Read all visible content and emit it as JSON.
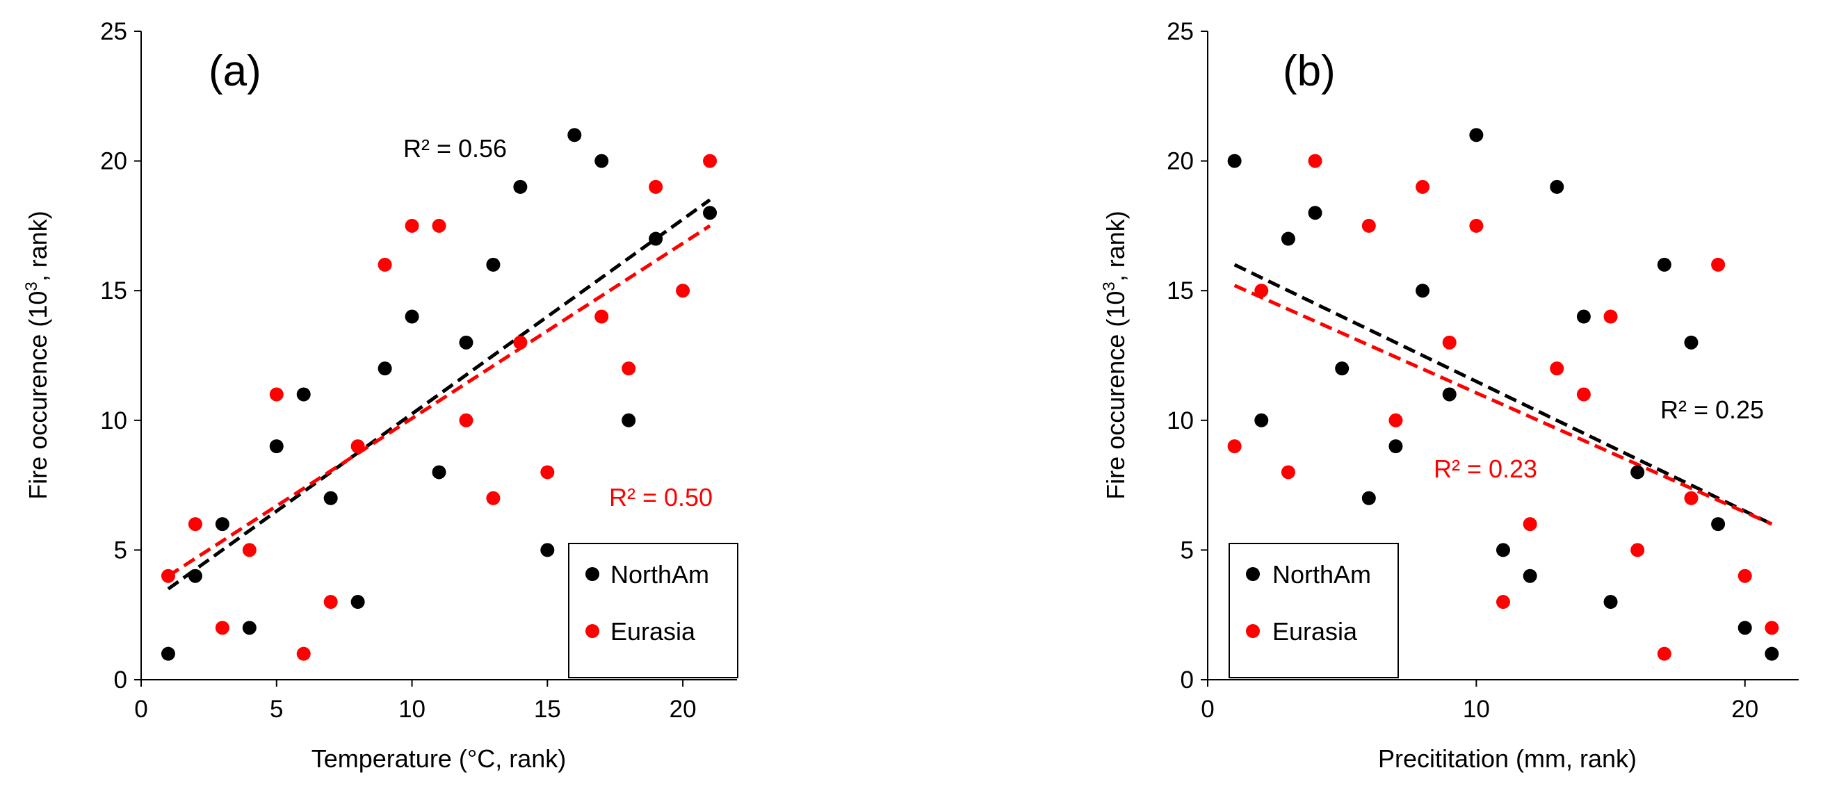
{
  "chart_data": [
    {
      "type": "scatter",
      "panel_label": "(a)",
      "xlabel": "Temperature (°C, rank)",
      "ylabel_main": "Fire occurence (10",
      "ylabel_sup": "3",
      "ylabel_tail": ", rank)",
      "xlim": [
        0,
        22
      ],
      "ylim": [
        0,
        25
      ],
      "xticks": [
        "0",
        "5",
        "10",
        "15",
        "20"
      ],
      "yticks": [
        "0",
        "5",
        "10",
        "15",
        "20",
        "25"
      ],
      "series": [
        {
          "name": "NorthAm",
          "color": "#000000",
          "x": [
            1,
            2,
            3,
            4,
            5,
            6,
            7,
            8,
            9,
            10,
            11,
            12,
            13,
            14,
            15,
            16,
            17,
            18,
            19,
            21
          ],
          "y": [
            1,
            4,
            6,
            2,
            9,
            11,
            7,
            3,
            12,
            14,
            8,
            13,
            16,
            19,
            5,
            21,
            20,
            10,
            17,
            18
          ],
          "trend": {
            "x": [
              1,
              21
            ],
            "y": [
              3.5,
              18.5
            ]
          },
          "r2_text": "R² = 0.56"
        },
        {
          "name": "Eurasia",
          "color": "#ff0000",
          "x": [
            1,
            2,
            3,
            4,
            5,
            6,
            7,
            8,
            9,
            10,
            11,
            12,
            13,
            14,
            15,
            17,
            18,
            19,
            20,
            21
          ],
          "y": [
            4,
            6,
            2,
            5,
            11,
            1,
            3,
            9,
            16,
            17.5,
            17.5,
            10,
            7,
            13,
            8,
            14,
            12,
            19,
            15,
            20
          ],
          "trend": {
            "x": [
              1,
              21
            ],
            "y": [
              4,
              17.5
            ]
          },
          "r2_text": "R² = 0.50"
        }
      ],
      "legend": "bottom-right"
    },
    {
      "type": "scatter",
      "panel_label": "(b)",
      "xlabel": "Precititation (mm, rank)",
      "ylabel_main": "Fire occurence (10",
      "ylabel_sup": "3",
      "ylabel_tail": ", rank)",
      "xlim": [
        0,
        22
      ],
      "ylim": [
        0,
        25
      ],
      "xticks": [
        "0",
        "10",
        "20"
      ],
      "yticks": [
        "0",
        "5",
        "10",
        "15",
        "20",
        "25"
      ],
      "series": [
        {
          "name": "NorthAm",
          "color": "#000000",
          "x": [
            1,
            2,
            3,
            4,
            5,
            6,
            7,
            8,
            9,
            10,
            11,
            12,
            13,
            14,
            15,
            16,
            17,
            18,
            19,
            20,
            21
          ],
          "y": [
            20,
            10,
            17,
            18,
            12,
            7,
            9,
            15,
            11,
            21,
            5,
            4,
            19,
            14,
            3,
            8,
            16,
            13,
            6,
            2,
            1
          ],
          "trend": {
            "x": [
              1,
              21
            ],
            "y": [
              16,
              6
            ]
          },
          "r2_text": "R² = 0.25"
        },
        {
          "name": "Eurasia",
          "color": "#ff0000",
          "x": [
            1,
            2,
            3,
            4,
            6,
            7,
            8,
            9,
            10,
            11,
            12,
            13,
            14,
            15,
            16,
            17,
            18,
            19,
            20,
            21
          ],
          "y": [
            9,
            15,
            8,
            20,
            17.5,
            10,
            19,
            13,
            17.5,
            3,
            6,
            12,
            11,
            14,
            5,
            1,
            7,
            16,
            4,
            2
          ],
          "trend": {
            "x": [
              1,
              21
            ],
            "y": [
              15.2,
              6
            ]
          },
          "r2_text": "R² = 0.23"
        }
      ],
      "legend": "bottom-left"
    }
  ]
}
